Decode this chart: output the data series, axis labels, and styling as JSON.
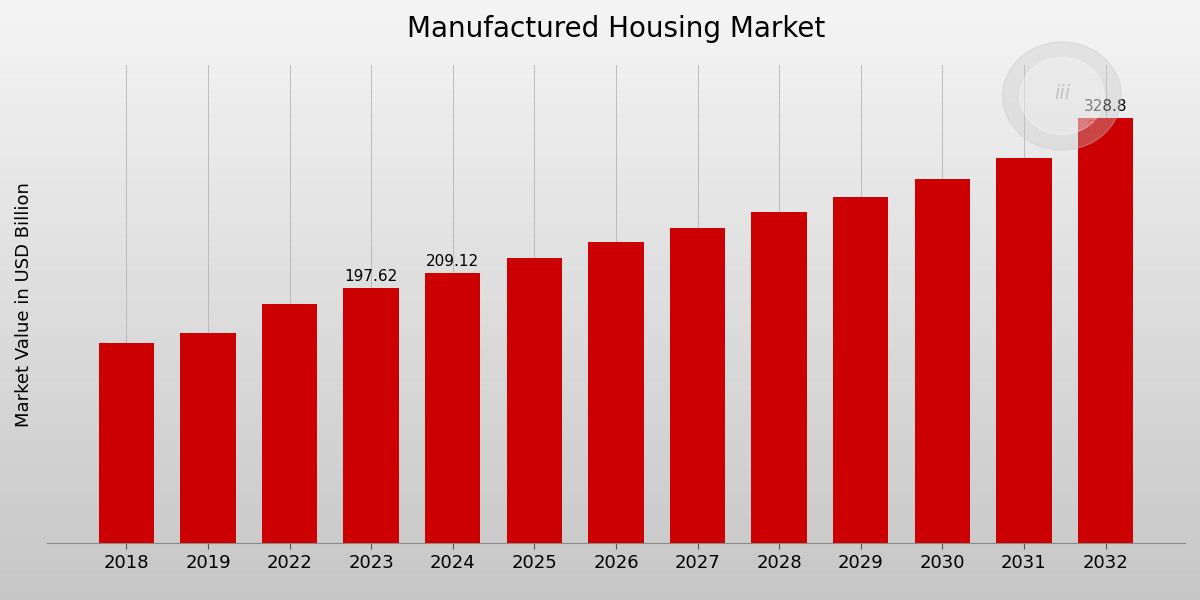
{
  "title": "Manufactured Housing Market",
  "ylabel": "Market Value in USD Billion",
  "categories": [
    "2018",
    "2019",
    "2022",
    "2023",
    "2024",
    "2025",
    "2026",
    "2027",
    "2028",
    "2029",
    "2030",
    "2031",
    "2032"
  ],
  "values": [
    155.0,
    163.0,
    185.0,
    197.62,
    209.12,
    221.0,
    233.0,
    244.0,
    256.0,
    268.0,
    282.0,
    298.0,
    328.8
  ],
  "bar_color": "#CC0000",
  "label_values": [
    null,
    null,
    null,
    "197.62",
    "209.12",
    null,
    null,
    null,
    null,
    null,
    null,
    null,
    "328.8"
  ],
  "title_fontsize": 20,
  "axis_label_fontsize": 13,
  "tick_fontsize": 13,
  "bar_label_fontsize": 11,
  "ylim": [
    0,
    370
  ],
  "bg_top_color": "#f0f0f0",
  "bg_bottom_color": "#c8c8c8",
  "bar_width": 0.68,
  "bottom_bar_color": "#CC0000",
  "bottom_bar_height": 0.022
}
